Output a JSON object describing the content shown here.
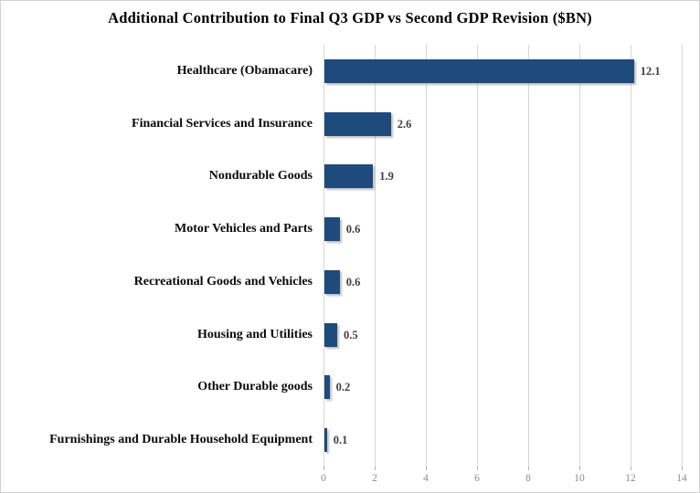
{
  "chart_data": {
    "type": "bar",
    "orientation": "horizontal",
    "title": "Additional Contribution to Final Q3 GDP vs Second GDP Revision ($BN)",
    "categories": [
      "Healthcare (Obamacare)",
      "Financial Services and Insurance",
      "Nondurable Goods",
      "Motor Vehicles and Parts",
      "Recreational Goods and Vehicles",
      "Housing and Utilities",
      "Other Durable goods",
      "Furnishings and Durable Household Equipment"
    ],
    "values": [
      12.1,
      2.6,
      1.9,
      0.6,
      0.6,
      0.5,
      0.2,
      0.1
    ],
    "value_labels": [
      "12.1",
      "2.6",
      "1.9",
      "0.6",
      "0.6",
      "0.5",
      "0.2",
      "0.1"
    ],
    "xlabel": "",
    "ylabel": "",
    "xlim": [
      0,
      14
    ],
    "x_ticks": [
      0,
      2,
      4,
      6,
      8,
      10,
      12,
      14
    ],
    "grid": "vertical-only",
    "legend": "none",
    "colors": {
      "bar": "#1f4b7c",
      "gridline": "#d6d6d6",
      "tick_mark": "#aeaeae",
      "tick_label": "#8a8a8a",
      "value_label": "#404040",
      "category_label": "#0a0a0a",
      "background": "#ffffff",
      "border": "#d2d2d2"
    }
  }
}
